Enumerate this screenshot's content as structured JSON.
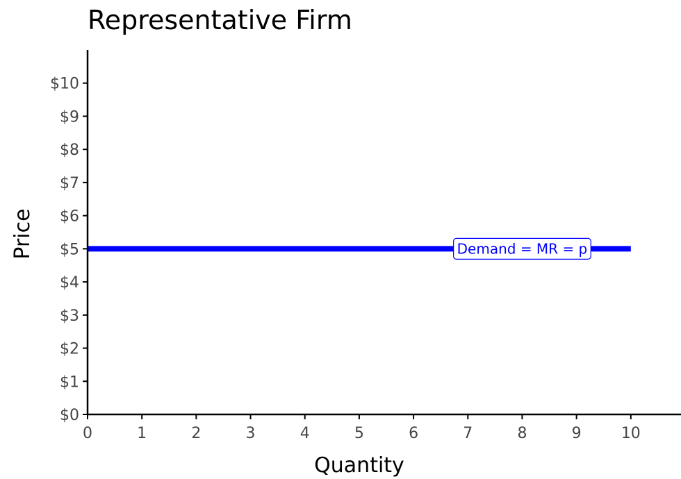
{
  "chart_data": {
    "type": "line",
    "title": "Representative Firm",
    "xlabel": "Quantity",
    "ylabel": "Price",
    "xlim": [
      0,
      11
    ],
    "ylim": [
      0,
      11
    ],
    "x_ticks": [
      0,
      1,
      2,
      3,
      4,
      5,
      6,
      7,
      8,
      9,
      10
    ],
    "x_tick_labels": [
      "0",
      "1",
      "2",
      "3",
      "4",
      "5",
      "6",
      "7",
      "8",
      "9",
      "10"
    ],
    "y_ticks": [
      0,
      1,
      2,
      3,
      4,
      5,
      6,
      7,
      8,
      9,
      10
    ],
    "y_tick_labels": [
      "$0",
      "$1",
      "$2",
      "$3",
      "$4",
      "$5",
      "$6",
      "$7",
      "$8",
      "$9",
      "$10"
    ],
    "grid": false,
    "series": [
      {
        "x": [
          0,
          10
        ],
        "y": [
          5,
          5
        ],
        "color": "#0000ff"
      }
    ],
    "annotations": [
      {
        "text": "Demand = MR = p",
        "x": 8,
        "y": 5,
        "color": "#0000ff"
      }
    ]
  }
}
